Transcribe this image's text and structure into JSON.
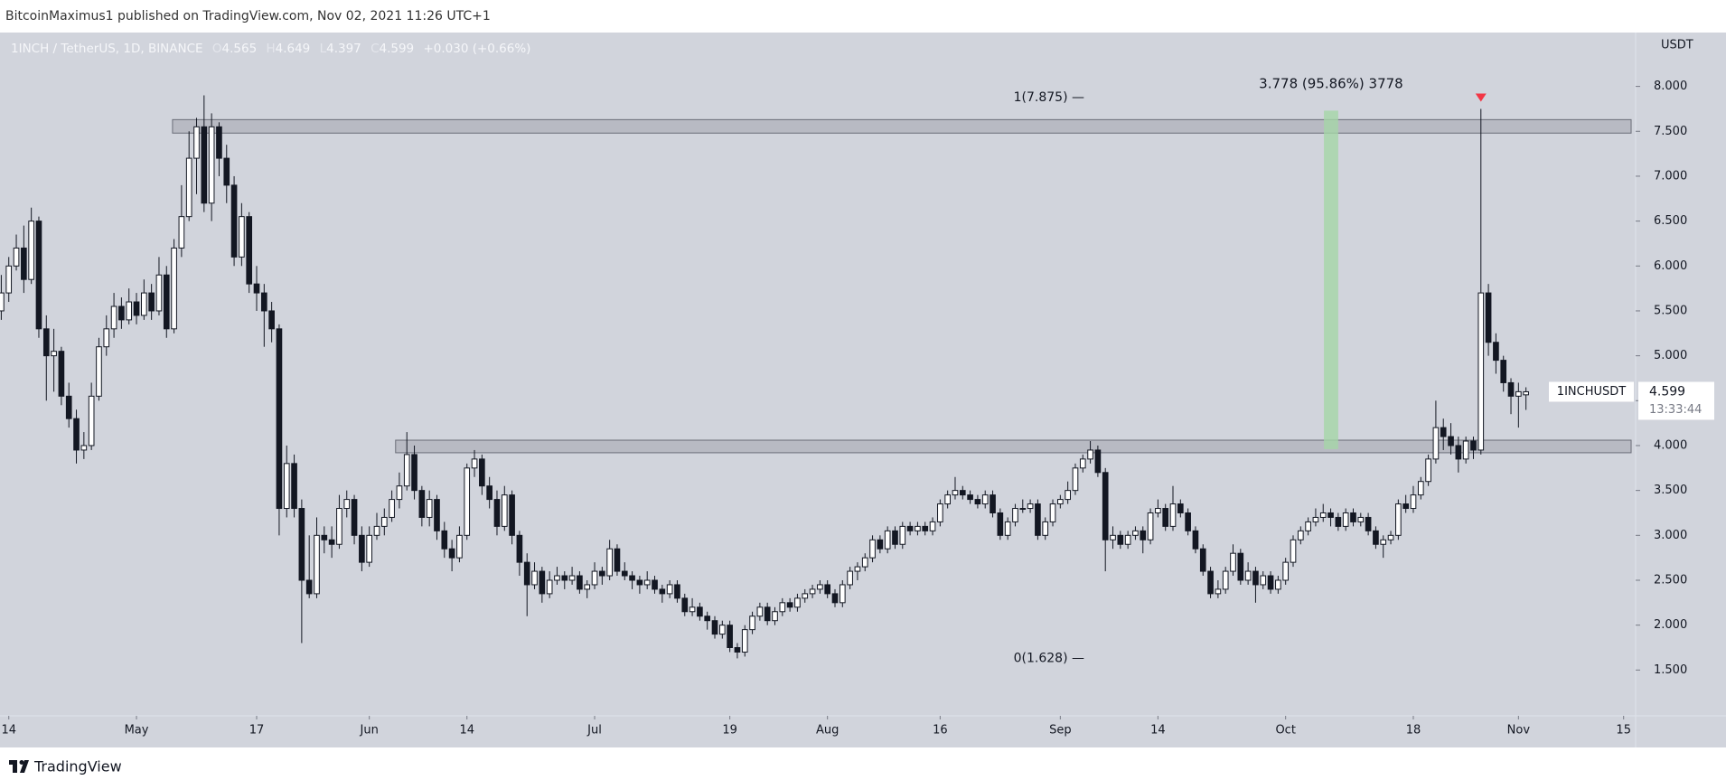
{
  "chart_data": {
    "type": "candlestick",
    "header": "BitcoinMaximus1 published on TradingView.com, Nov 02, 2021 11:26 UTC+1",
    "symbol": "1INCH / TetherUS, 1D, BINANCE",
    "ohlc_letters": [
      "O",
      "H",
      "L",
      "C"
    ],
    "change": "+0.030 (+0.66%)",
    "y_unit": "USDT",
    "footer": "TradingView",
    "last_label": "1INCHUSDT",
    "countdown": "13:33:44",
    "up_color": "#ffffff",
    "down_color": "#131722",
    "wick_color": "#131722",
    "xlim": [
      102.83,
      320.6
    ],
    "xticks": [
      {
        "value": 104,
        "label": "14"
      },
      {
        "value": 121,
        "label": "May"
      },
      {
        "value": 137,
        "label": "17"
      },
      {
        "value": 152,
        "label": "Jun"
      },
      {
        "value": 165,
        "label": "14"
      },
      {
        "value": 182,
        "label": "Jul"
      },
      {
        "value": 200,
        "label": "19"
      },
      {
        "value": 213,
        "label": "Aug"
      },
      {
        "value": 228,
        "label": "16"
      },
      {
        "value": 244,
        "label": "Sep"
      },
      {
        "value": 257,
        "label": "14"
      },
      {
        "value": 274,
        "label": "Oct"
      },
      {
        "value": 291,
        "label": "18"
      },
      {
        "value": 305,
        "label": "Nov"
      },
      {
        "value": 319,
        "label": "15"
      }
    ],
    "ylim": [
      0.99,
      8.6
    ],
    "yticks": [
      {
        "value": 1.5,
        "label": "1.500"
      },
      {
        "value": 2,
        "label": "2.000"
      },
      {
        "value": 2.5,
        "label": "2.500"
      },
      {
        "value": 3,
        "label": "3.000"
      },
      {
        "value": 3.5,
        "label": "3.500"
      },
      {
        "value": 4,
        "label": "4.000"
      },
      {
        "value": 4.5,
        "label": "4.500"
      },
      {
        "value": 5,
        "label": "5.000"
      },
      {
        "value": 5.5,
        "label": "5.500"
      },
      {
        "value": 6,
        "label": "6.000"
      },
      {
        "value": 6.5,
        "label": "6.500"
      },
      {
        "value": 7,
        "label": "7.000"
      },
      {
        "value": 7.5,
        "label": "7.500"
      },
      {
        "value": 8,
        "label": "8.000"
      }
    ],
    "zones": [
      {
        "x": [
          125.8,
          320
        ],
        "y": [
          7.48,
          7.63
        ]
      },
      {
        "x": [
          155.5,
          320
        ],
        "y": [
          3.92,
          4.06
        ]
      }
    ],
    "zone_color": "#9a9ca5",
    "measure": {
      "label": "3.778 (95.86%) 3778",
      "x": [
        279.1,
        281
      ],
      "y": [
        3.96,
        7.73
      ],
      "color": "#a5d6a7"
    },
    "fib_levels": [
      {
        "value": 7.875,
        "label": "1(7.875) —"
      },
      {
        "value": 1.628,
        "label": "0(1.628) —"
      }
    ],
    "marker": {
      "x": 300,
      "color": "#f23645"
    },
    "x": [
      103,
      104,
      105,
      106,
      107,
      108,
      109,
      110,
      111,
      112,
      113,
      114,
      115,
      116,
      117,
      118,
      119,
      120,
      121,
      122,
      123,
      124,
      125,
      126,
      127,
      128,
      129,
      130,
      131,
      132,
      133,
      134,
      135,
      136,
      137,
      138,
      139,
      140,
      141,
      142,
      143,
      144,
      145,
      146,
      147,
      148,
      149,
      150,
      151,
      152,
      153,
      154,
      155,
      156,
      157,
      158,
      159,
      160,
      161,
      162,
      163,
      164,
      165,
      166,
      167,
      168,
      169,
      170,
      171,
      172,
      173,
      174,
      175,
      176,
      177,
      178,
      179,
      180,
      181,
      182,
      183,
      184,
      185,
      186,
      187,
      188,
      189,
      190,
      191,
      192,
      193,
      194,
      195,
      196,
      197,
      198,
      199,
      200,
      201,
      202,
      203,
      204,
      205,
      206,
      207,
      208,
      209,
      210,
      211,
      212,
      213,
      214,
      215,
      216,
      217,
      218,
      219,
      220,
      221,
      222,
      223,
      224,
      225,
      226,
      227,
      228,
      229,
      230,
      231,
      232,
      233,
      234,
      235,
      236,
      237,
      238,
      239,
      240,
      241,
      242,
      243,
      244,
      245,
      246,
      247,
      248,
      249,
      250,
      251,
      252,
      253,
      254,
      255,
      256,
      257,
      258,
      259,
      260,
      261,
      262,
      263,
      264,
      265,
      266,
      267,
      268,
      269,
      270,
      271,
      272,
      273,
      274,
      275,
      276,
      277,
      278,
      279,
      280,
      281,
      282,
      283,
      284,
      285,
      286,
      287,
      288,
      289,
      290,
      291,
      292,
      293,
      294,
      295,
      296,
      297,
      298,
      299,
      300,
      301,
      302,
      303,
      304,
      305,
      306
    ],
    "open": [
      5.5,
      5.7,
      6.0,
      6.2,
      5.85,
      6.5,
      5.3,
      5.0,
      5.05,
      4.55,
      4.3,
      3.95,
      4.0,
      4.55,
      5.1,
      5.3,
      5.55,
      5.4,
      5.6,
      5.45,
      5.7,
      5.5,
      5.9,
      5.3,
      6.2,
      6.55,
      7.2,
      7.55,
      6.7,
      7.55,
      7.2,
      6.9,
      6.1,
      6.55,
      5.8,
      5.7,
      5.5,
      5.3,
      3.3,
      3.8,
      3.3,
      2.5,
      2.35,
      3.0,
      2.95,
      2.9,
      3.3,
      3.4,
      3.0,
      2.7,
      3.0,
      3.1,
      3.2,
      3.4,
      3.55,
      3.9,
      3.5,
      3.2,
      3.4,
      3.05,
      2.85,
      2.75,
      3.0,
      3.75,
      3.85,
      3.55,
      3.4,
      3.1,
      3.45,
      3.0,
      2.7,
      2.45,
      2.6,
      2.35,
      2.5,
      2.55,
      2.5,
      2.55,
      2.4,
      2.45,
      2.6,
      2.55,
      2.85,
      2.6,
      2.55,
      2.5,
      2.45,
      2.5,
      2.4,
      2.35,
      2.45,
      2.3,
      2.15,
      2.2,
      2.1,
      2.05,
      1.9,
      2.0,
      1.75,
      1.7,
      1.95,
      2.1,
      2.2,
      2.05,
      2.15,
      2.25,
      2.2,
      2.3,
      2.35,
      2.4,
      2.45,
      2.35,
      2.25,
      2.45,
      2.6,
      2.65,
      2.75,
      2.95,
      2.85,
      3.05,
      2.9,
      3.1,
      3.05,
      3.1,
      3.05,
      3.15,
      3.35,
      3.45,
      3.5,
      3.45,
      3.4,
      3.35,
      3.45,
      3.25,
      3.0,
      3.15,
      3.3,
      3.3,
      3.35,
      3.0,
      3.15,
      3.35,
      3.4,
      3.5,
      3.75,
      3.85,
      3.95,
      3.7,
      2.95,
      3.0,
      2.9,
      3.0,
      3.05,
      2.95,
      3.25,
      3.3,
      3.1,
      3.35,
      3.25,
      3.05,
      2.85,
      2.6,
      2.35,
      2.4,
      2.6,
      2.8,
      2.5,
      2.6,
      2.45,
      2.55,
      2.4,
      2.5,
      2.7,
      2.95,
      3.05,
      3.15,
      3.2,
      3.25,
      3.2,
      3.1,
      3.25,
      3.15,
      3.2,
      3.05,
      2.9,
      2.95,
      3.0,
      3.35,
      3.3,
      3.45,
      3.6,
      3.85,
      4.2,
      4.1,
      4.0,
      3.85,
      4.05,
      3.95,
      5.7,
      5.15,
      4.95,
      4.7,
      4.55,
      4.565
    ],
    "high": [
      5.9,
      6.1,
      6.35,
      6.45,
      6.65,
      6.55,
      5.45,
      5.3,
      5.1,
      4.7,
      4.4,
      4.15,
      4.7,
      5.2,
      5.45,
      5.7,
      5.65,
      5.75,
      5.7,
      5.85,
      5.8,
      6.1,
      6.0,
      6.3,
      6.9,
      7.5,
      7.65,
      7.9,
      7.7,
      7.6,
      7.35,
      7.0,
      6.7,
      6.6,
      6.0,
      5.8,
      5.6,
      5.35,
      4.0,
      3.9,
      3.4,
      3.0,
      3.2,
      3.1,
      3.1,
      3.45,
      3.5,
      3.45,
      3.1,
      3.1,
      3.25,
      3.3,
      3.5,
      3.7,
      4.15,
      4.0,
      3.55,
      3.5,
      3.45,
      3.15,
      2.95,
      3.1,
      3.8,
      3.95,
      3.9,
      3.65,
      3.5,
      3.55,
      3.5,
      3.05,
      2.8,
      2.7,
      2.65,
      2.6,
      2.65,
      2.6,
      2.65,
      2.6,
      2.5,
      2.7,
      2.65,
      2.95,
      2.9,
      2.7,
      2.6,
      2.55,
      2.6,
      2.55,
      2.45,
      2.5,
      2.5,
      2.35,
      2.3,
      2.25,
      2.15,
      2.1,
      2.05,
      2.05,
      1.8,
      2.0,
      2.15,
      2.25,
      2.25,
      2.2,
      2.3,
      2.3,
      2.35,
      2.4,
      2.45,
      2.5,
      2.5,
      2.4,
      2.5,
      2.65,
      2.7,
      2.8,
      3.0,
      3.0,
      3.1,
      3.1,
      3.15,
      3.15,
      3.15,
      3.15,
      3.2,
      3.4,
      3.5,
      3.65,
      3.55,
      3.5,
      3.45,
      3.5,
      3.5,
      3.3,
      3.2,
      3.35,
      3.4,
      3.4,
      3.4,
      3.2,
      3.4,
      3.45,
      3.6,
      3.8,
      3.9,
      4.05,
      4.0,
      3.75,
      3.1,
      3.05,
      3.05,
      3.1,
      3.1,
      3.3,
      3.4,
      3.35,
      3.55,
      3.4,
      3.3,
      3.1,
      2.9,
      2.65,
      2.5,
      2.65,
      2.9,
      2.85,
      2.7,
      2.65,
      2.6,
      2.6,
      2.55,
      2.75,
      3.0,
      3.1,
      3.2,
      3.3,
      3.35,
      3.3,
      3.25,
      3.3,
      3.3,
      3.25,
      3.25,
      3.1,
      3.0,
      3.05,
      3.4,
      3.45,
      3.55,
      3.65,
      3.9,
      4.5,
      4.3,
      4.25,
      4.1,
      4.1,
      4.1,
      7.75,
      5.8,
      5.25,
      5.0,
      4.75,
      4.7,
      4.649
    ],
    "low": [
      5.4,
      5.6,
      5.95,
      5.7,
      5.8,
      5.2,
      4.5,
      4.6,
      4.45,
      4.2,
      3.8,
      3.85,
      3.95,
      4.5,
      5.0,
      5.2,
      5.3,
      5.35,
      5.35,
      5.4,
      5.4,
      5.45,
      5.2,
      5.25,
      6.1,
      6.5,
      6.8,
      6.6,
      6.5,
      7.0,
      6.7,
      6.0,
      6.0,
      5.7,
      5.5,
      5.1,
      5.15,
      3.0,
      3.2,
      3.2,
      1.8,
      2.3,
      2.3,
      2.8,
      2.75,
      2.85,
      3.2,
      2.9,
      2.6,
      2.65,
      2.95,
      3.0,
      3.15,
      3.3,
      3.5,
      3.4,
      3.1,
      3.1,
      2.95,
      2.75,
      2.6,
      2.7,
      2.95,
      3.65,
      3.45,
      3.3,
      3.0,
      3.05,
      2.9,
      2.55,
      2.1,
      2.4,
      2.25,
      2.3,
      2.45,
      2.4,
      2.45,
      2.35,
      2.3,
      2.4,
      2.45,
      2.5,
      2.55,
      2.5,
      2.4,
      2.35,
      2.4,
      2.35,
      2.25,
      2.3,
      2.25,
      2.1,
      2.1,
      2.05,
      1.95,
      1.85,
      1.85,
      1.7,
      1.63,
      1.65,
      1.9,
      2.05,
      2.0,
      2.0,
      2.1,
      2.15,
      2.15,
      2.25,
      2.3,
      2.35,
      2.3,
      2.2,
      2.2,
      2.4,
      2.5,
      2.6,
      2.7,
      2.8,
      2.8,
      2.85,
      2.85,
      3.0,
      3.0,
      3.0,
      3.0,
      3.1,
      3.3,
      3.4,
      3.4,
      3.35,
      3.3,
      3.3,
      3.2,
      2.95,
      2.95,
      3.1,
      3.25,
      3.25,
      2.95,
      2.95,
      3.1,
      3.3,
      3.35,
      3.45,
      3.7,
      3.8,
      3.65,
      2.6,
      2.85,
      2.85,
      2.85,
      2.95,
      2.8,
      2.9,
      3.2,
      3.05,
      3.05,
      3.2,
      3.0,
      2.8,
      2.55,
      2.3,
      2.3,
      2.35,
      2.55,
      2.45,
      2.45,
      2.25,
      2.4,
      2.35,
      2.35,
      2.45,
      2.65,
      2.9,
      3.0,
      3.1,
      3.15,
      3.1,
      3.05,
      3.05,
      3.1,
      3.1,
      3.0,
      2.85,
      2.75,
      2.9,
      2.95,
      3.25,
      3.25,
      3.4,
      3.55,
      3.8,
      3.95,
      3.9,
      3.7,
      3.8,
      3.85,
      3.9,
      5.0,
      4.8,
      4.6,
      4.35,
      4.2,
      4.397
    ],
    "close": [
      5.7,
      6.0,
      6.2,
      5.85,
      6.5,
      5.3,
      5.0,
      5.05,
      4.55,
      4.3,
      3.95,
      4.0,
      4.55,
      5.1,
      5.3,
      5.55,
      5.4,
      5.6,
      5.45,
      5.7,
      5.5,
      5.9,
      5.3,
      6.2,
      6.55,
      7.2,
      7.55,
      6.7,
      7.55,
      7.2,
      6.9,
      6.1,
      6.55,
      5.8,
      5.7,
      5.5,
      5.3,
      3.3,
      3.8,
      3.3,
      2.5,
      2.35,
      3.0,
      2.95,
      2.9,
      3.3,
      3.4,
      3.0,
      2.7,
      3.0,
      3.1,
      3.2,
      3.4,
      3.55,
      3.9,
      3.5,
      3.2,
      3.4,
      3.05,
      2.85,
      2.75,
      3.0,
      3.75,
      3.85,
      3.55,
      3.4,
      3.1,
      3.45,
      3.0,
      2.7,
      2.45,
      2.6,
      2.35,
      2.5,
      2.55,
      2.5,
      2.55,
      2.4,
      2.45,
      2.6,
      2.55,
      2.85,
      2.6,
      2.55,
      2.5,
      2.45,
      2.5,
      2.4,
      2.35,
      2.45,
      2.3,
      2.15,
      2.2,
      2.1,
      2.05,
      1.9,
      2.0,
      1.75,
      1.7,
      1.95,
      2.1,
      2.2,
      2.05,
      2.15,
      2.25,
      2.2,
      2.3,
      2.35,
      2.4,
      2.45,
      2.35,
      2.25,
      2.45,
      2.6,
      2.65,
      2.75,
      2.95,
      2.85,
      3.05,
      2.9,
      3.1,
      3.05,
      3.1,
      3.05,
      3.15,
      3.35,
      3.45,
      3.5,
      3.45,
      3.4,
      3.35,
      3.45,
      3.25,
      3.0,
      3.15,
      3.3,
      3.3,
      3.35,
      3.0,
      3.15,
      3.35,
      3.4,
      3.5,
      3.75,
      3.85,
      3.95,
      3.7,
      2.95,
      3.0,
      2.9,
      3.0,
      3.05,
      2.95,
      3.25,
      3.3,
      3.1,
      3.35,
      3.25,
      3.05,
      2.85,
      2.6,
      2.35,
      2.4,
      2.6,
      2.8,
      2.5,
      2.6,
      2.45,
      2.55,
      2.4,
      2.5,
      2.7,
      2.95,
      3.05,
      3.15,
      3.2,
      3.25,
      3.2,
      3.1,
      3.25,
      3.15,
      3.2,
      3.05,
      2.9,
      2.95,
      3.0,
      3.35,
      3.3,
      3.45,
      3.6,
      3.85,
      4.2,
      4.1,
      4.0,
      3.85,
      4.05,
      3.95,
      5.7,
      5.15,
      4.95,
      4.7,
      4.55,
      4.6,
      4.599
    ]
  }
}
